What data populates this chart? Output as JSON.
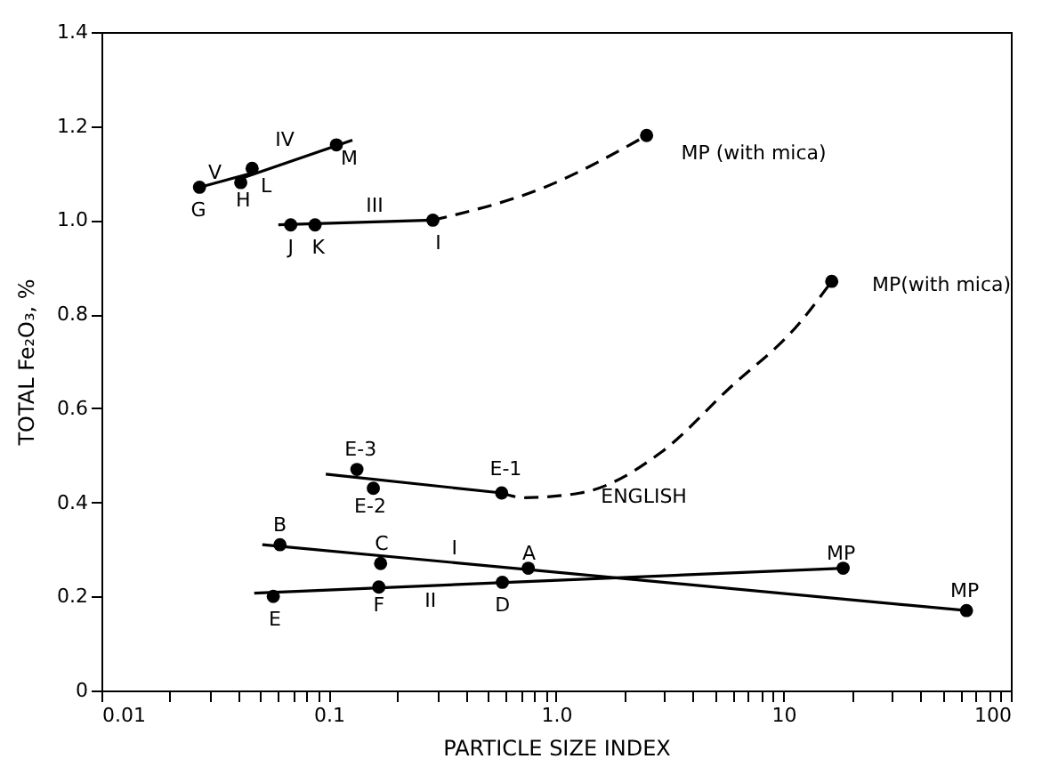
{
  "chart_data": {
    "type": "scatter",
    "xlabel": "PARTICLE SIZE INDEX",
    "ylabel": "TOTAL Fe₂O₃, %",
    "log": "x",
    "grid": false,
    "xlim": [
      0.01,
      100
    ],
    "ylim": [
      0,
      1.4
    ],
    "xticks": [
      0.01,
      {
        "value": 0.02,
        "label": null
      },
      {
        "value": 0.03,
        "label": null
      },
      {
        "value": 0.04,
        "label": null
      },
      {
        "value": 0.05,
        "label": null
      },
      {
        "value": 0.06,
        "label": null
      },
      {
        "value": 0.07,
        "label": null
      },
      {
        "value": 0.08,
        "label": null
      },
      {
        "value": 0.09,
        "label": null
      },
      0.1,
      {
        "value": 0.2,
        "label": null
      },
      {
        "value": 0.3,
        "label": null
      },
      {
        "value": 0.4,
        "label": null
      },
      {
        "value": 0.5,
        "label": null
      },
      {
        "value": 0.6,
        "label": null
      },
      {
        "value": 0.7,
        "label": null
      },
      {
        "value": 0.8,
        "label": null
      },
      {
        "value": 0.9,
        "label": null
      },
      {
        "value": 1,
        "label": "1.0"
      },
      {
        "value": 2,
        "label": null
      },
      {
        "value": 3,
        "label": null
      },
      {
        "value": 4,
        "label": null
      },
      {
        "value": 5,
        "label": null
      },
      {
        "value": 6,
        "label": null
      },
      {
        "value": 7,
        "label": null
      },
      {
        "value": 8,
        "label": null
      },
      {
        "value": 9,
        "label": null
      },
      10,
      {
        "value": 20,
        "label": null
      },
      {
        "value": 30,
        "label": null
      },
      {
        "value": 40,
        "label": null
      },
      {
        "value": 50,
        "label": null
      },
      {
        "value": 60,
        "label": null
      },
      {
        "value": 70,
        "label": null
      },
      {
        "value": 80,
        "label": null
      },
      {
        "value": 90,
        "label": null
      },
      100
    ],
    "yticks": [
      0,
      0.2,
      0.4,
      0.6,
      0.8,
      {
        "value": 1,
        "label": "1.0"
      },
      1.2,
      1.4
    ],
    "series": [
      {
        "type": "scatter",
        "marker": "circle",
        "color": "#000000",
        "x": [
          0.027,
          0.041,
          0.046,
          0.108,
          0.068,
          0.087,
          0.287,
          2.5,
          16.3,
          0.133,
          0.157,
          0.576,
          0.061,
          0.169,
          0.754,
          63.8,
          0.057,
          0.166,
          0.58,
          18.3
        ],
        "values": [
          1.07,
          1.08,
          1.11,
          1.16,
          0.99,
          0.99,
          1.0,
          1.18,
          0.87,
          0.47,
          0.43,
          0.42,
          0.31,
          0.27,
          0.26,
          0.17,
          0.2,
          0.22,
          0.23,
          0.26
        ]
      },
      {
        "type": "line",
        "marker": "none",
        "line_style": "solid",
        "color": "#000000",
        "x": [
          0.027,
          0.046
        ],
        "values": [
          1.07,
          1.1
        ]
      },
      {
        "type": "line",
        "marker": "none",
        "line_style": "solid",
        "color": "#000000",
        "x": [
          0.042,
          0.127
        ],
        "values": [
          1.09,
          1.17
        ]
      },
      {
        "type": "line",
        "marker": "none",
        "line_style": "solid",
        "color": "#000000",
        "x": [
          0.06,
          0.287
        ],
        "values": [
          0.99,
          1.0
        ]
      },
      {
        "type": "line",
        "marker": "none",
        "line_style": "dashed",
        "color": "#000000",
        "x": [
          0.287,
          0.89,
          2.5
        ],
        "values": [
          1.0,
          1.07,
          1.18
        ]
      },
      {
        "type": "line",
        "marker": "none",
        "line_style": "solid",
        "color": "#000000",
        "x": [
          0.097,
          0.576
        ],
        "values": [
          0.46,
          0.42
        ]
      },
      {
        "type": "line",
        "marker": "none",
        "line_style": "dashed",
        "color": "#000000",
        "x": [
          0.576,
          0.72,
          1.28,
          2.96,
          5.7,
          11.7,
          16.3
        ],
        "values": [
          0.42,
          0.41,
          0.42,
          0.51,
          0.64,
          0.78,
          0.87
        ]
      },
      {
        "type": "line",
        "marker": "none",
        "line_style": "solid",
        "color": "#000000",
        "x": [
          0.051,
          63.8
        ],
        "values": [
          0.31,
          0.17
        ]
      },
      {
        "type": "line",
        "marker": "none",
        "line_style": "solid",
        "color": "#000000",
        "x": [
          0.047,
          18.3
        ],
        "values": [
          0.207,
          0.26
        ]
      }
    ],
    "annotations": [
      "G",
      "H",
      "L",
      "M",
      "V",
      "IV",
      "J",
      "K",
      "I",
      "III",
      "MP (with mica)",
      "MP(with mica)",
      "ENGLISH",
      "E-3",
      "E-2",
      "E-1",
      "B",
      "C",
      "I",
      "A",
      "MP",
      "MP",
      "E",
      "F",
      "II",
      "D"
    ]
  }
}
